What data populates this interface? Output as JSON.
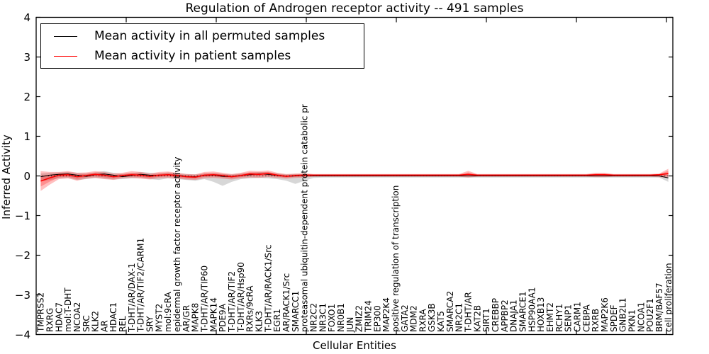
{
  "figure": {
    "title": "Regulation of Androgen receptor activity -- 491 samples"
  },
  "legend": {
    "entries": [
      {
        "label": "Mean activity in all permuted samples",
        "color": "#000000"
      },
      {
        "label": "Mean activity in patient samples",
        "color": "#ff0000"
      }
    ]
  },
  "chart_data": {
    "type": "line",
    "title": "Regulation of Androgen receptor activity -- 491 samples",
    "xlabel": "Cellular Entities",
    "ylabel": "Inferred Activity",
    "ylim": [
      -4,
      4
    ],
    "yticks": [
      -4,
      -3,
      -2,
      -1,
      0,
      1,
      2,
      3,
      4
    ],
    "grid": false,
    "legend_position": "upper left",
    "zero_line_style": "dotted",
    "x_tick_labels_rotation_deg": 90,
    "categories": [
      "TMPRSS2",
      "RXRG",
      "HDAC7",
      "mol:T-DHT",
      "NCOA2",
      "SRC",
      "KLK2",
      "AR",
      "HDAC1",
      "REL",
      "T-DHT/AR/DAX-1",
      "T-DHT/AR/TIF2/CARM1",
      "SRY",
      "MYST2",
      "mol:9cRA",
      "epidermal growth factor receptor activity",
      "AR/GR",
      "MAPK8",
      "T-DHT/AR/TIP60",
      "MAPK14",
      "PDE9A",
      "T-DHT/AR/TIF2",
      "T-DHT/AR/Hsp90",
      "RXRs/9cRA",
      "KLK3",
      "T-DHT/AR/RACK1/Src",
      "EGR1",
      "AR/RACK1/Src",
      "SMARCC1",
      "proteasomal ubiquitin-dependent protein catabolic pr",
      "NR2C2",
      "NR3C1",
      "FOXO1",
      "NR0B1",
      "JUN",
      "ZMIZ2",
      "TRIM24",
      "EP300",
      "MAP2K4",
      "positive regulation of transcription",
      "GATA2",
      "MDM2",
      "RXRA",
      "GSK3B",
      "KAT5",
      "SMARCA2",
      "NR2C1",
      "T-DHT/AR",
      "KAT2B",
      "SIRT1",
      "CREBBP",
      "APPBP2",
      "DNAJA1",
      "SMARCE1",
      "HSP90AA1",
      "HOXB13",
      "EHMT2",
      "RCHY1",
      "SENP1",
      "CARM1",
      "CEBPA",
      "RXRB",
      "MAP2K6",
      "SPDEF",
      "GNB2L1",
      "PKN1",
      "NCOA1",
      "POU2F1",
      "BRM/BAF57",
      "cell proliferation"
    ],
    "series": [
      {
        "name": "Mean activity in all permuted samples",
        "color": "#000000",
        "band_color": "rgba(110,110,110,0.28)",
        "mean": [
          -0.02,
          0.02,
          0.04,
          0.05,
          0.02,
          -0.01,
          0.03,
          0.05,
          0.02,
          -0.02,
          0.01,
          0.04,
          0.02,
          0.01,
          0.03,
          0.02,
          -0.01,
          -0.02,
          0.01,
          0.02,
          -0.01,
          -0.02,
          0.01,
          0.03,
          0.05,
          0.04,
          0.01,
          -0.01,
          0.0,
          0.01,
          0.0,
          0.0,
          0.0,
          0.0,
          0.0,
          0.0,
          0.0,
          0.0,
          0.0,
          0.0,
          0.0,
          0.0,
          0.0,
          0.0,
          0.0,
          0.0,
          0.0,
          0.0,
          0.0,
          0.0,
          0.0,
          0.0,
          0.0,
          0.0,
          0.0,
          0.0,
          0.0,
          0.0,
          0.0,
          0.0,
          0.0,
          0.0,
          0.0,
          0.0,
          0.0,
          0.0,
          0.0,
          0.0,
          0.0,
          -0.05
        ],
        "upper": [
          0.06,
          0.08,
          0.09,
          0.1,
          0.08,
          0.06,
          0.09,
          0.12,
          0.08,
          0.05,
          0.07,
          0.1,
          0.08,
          0.06,
          0.09,
          0.07,
          0.05,
          0.04,
          0.06,
          0.07,
          0.05,
          0.04,
          0.06,
          0.08,
          0.1,
          0.09,
          0.06,
          0.04,
          0.05,
          0.05,
          0.04,
          0.04,
          0.04,
          0.04,
          0.04,
          0.04,
          0.04,
          0.04,
          0.04,
          0.04,
          0.04,
          0.04,
          0.04,
          0.04,
          0.04,
          0.04,
          0.04,
          0.04,
          0.04,
          0.04,
          0.04,
          0.04,
          0.04,
          0.04,
          0.04,
          0.04,
          0.04,
          0.04,
          0.04,
          0.04,
          0.04,
          0.04,
          0.04,
          0.04,
          0.04,
          0.04,
          0.04,
          0.04,
          0.04,
          0.04
        ],
        "lower": [
          -0.14,
          -0.1,
          -0.06,
          -0.05,
          -0.1,
          -0.08,
          -0.05,
          -0.07,
          -0.09,
          -0.08,
          -0.06,
          -0.05,
          -0.08,
          -0.1,
          -0.06,
          -0.08,
          -0.1,
          -0.12,
          -0.08,
          -0.15,
          -0.25,
          -0.15,
          -0.08,
          -0.06,
          -0.05,
          -0.06,
          -0.08,
          -0.12,
          -0.2,
          -0.12,
          -0.05,
          -0.04,
          -0.04,
          -0.04,
          -0.04,
          -0.04,
          -0.04,
          -0.04,
          -0.04,
          -0.04,
          -0.04,
          -0.04,
          -0.04,
          -0.04,
          -0.04,
          -0.04,
          -0.04,
          -0.04,
          -0.04,
          -0.04,
          -0.04,
          -0.04,
          -0.04,
          -0.04,
          -0.04,
          -0.04,
          -0.04,
          -0.04,
          -0.04,
          -0.04,
          -0.04,
          -0.04,
          -0.04,
          -0.04,
          -0.04,
          -0.04,
          -0.04,
          -0.04,
          -0.04,
          -0.15
        ]
      },
      {
        "name": "Mean activity in patient samples",
        "color": "#ff0000",
        "band_color": "rgba(255,0,0,0.25)",
        "mean": [
          -0.13,
          -0.05,
          0.02,
          0.03,
          -0.02,
          0.01,
          0.04,
          0.02,
          -0.02,
          0.01,
          0.03,
          0.02,
          -0.01,
          0.02,
          0.03,
          0.01,
          -0.02,
          -0.03,
          0.02,
          0.03,
          0.01,
          -0.02,
          0.01,
          0.05,
          0.04,
          0.06,
          0.02,
          -0.01,
          0.01,
          0.02,
          0.02,
          0.02,
          0.02,
          0.02,
          0.02,
          0.02,
          0.02,
          0.02,
          0.02,
          0.02,
          0.02,
          0.02,
          0.02,
          0.02,
          0.02,
          0.02,
          0.02,
          0.04,
          0.02,
          0.02,
          0.02,
          0.02,
          0.02,
          0.02,
          0.02,
          0.02,
          0.02,
          0.02,
          0.02,
          0.02,
          0.02,
          0.03,
          0.03,
          0.02,
          0.02,
          0.02,
          0.02,
          0.02,
          0.03,
          0.06
        ],
        "upper": [
          0.12,
          0.1,
          0.1,
          0.12,
          0.08,
          0.09,
          0.12,
          0.1,
          0.06,
          0.08,
          0.12,
          0.1,
          0.06,
          0.1,
          0.11,
          0.08,
          0.05,
          0.04,
          0.1,
          0.11,
          0.08,
          0.05,
          0.08,
          0.13,
          0.12,
          0.14,
          0.08,
          0.05,
          0.06,
          0.07,
          0.05,
          0.05,
          0.05,
          0.05,
          0.05,
          0.05,
          0.05,
          0.05,
          0.05,
          0.05,
          0.05,
          0.05,
          0.05,
          0.05,
          0.05,
          0.05,
          0.05,
          0.13,
          0.05,
          0.05,
          0.05,
          0.05,
          0.05,
          0.05,
          0.05,
          0.05,
          0.05,
          0.05,
          0.05,
          0.05,
          0.05,
          0.08,
          0.08,
          0.05,
          0.05,
          0.05,
          0.05,
          0.05,
          0.06,
          0.18
        ],
        "lower": [
          -0.38,
          -0.22,
          -0.08,
          -0.06,
          -0.12,
          -0.07,
          -0.05,
          -0.08,
          -0.1,
          -0.06,
          -0.05,
          -0.07,
          -0.09,
          -0.06,
          -0.05,
          -0.07,
          -0.09,
          -0.1,
          -0.06,
          -0.05,
          -0.07,
          -0.09,
          -0.06,
          -0.04,
          -0.05,
          -0.03,
          -0.05,
          -0.07,
          -0.05,
          -0.04,
          -0.02,
          -0.02,
          -0.02,
          -0.02,
          -0.02,
          -0.02,
          -0.02,
          -0.02,
          -0.02,
          -0.02,
          -0.02,
          -0.02,
          -0.02,
          -0.02,
          -0.02,
          -0.02,
          -0.02,
          -0.04,
          -0.02,
          -0.02,
          -0.02,
          -0.02,
          -0.02,
          -0.02,
          -0.02,
          -0.02,
          -0.02,
          -0.02,
          -0.02,
          -0.02,
          -0.02,
          -0.03,
          -0.03,
          -0.02,
          -0.02,
          -0.02,
          -0.02,
          -0.02,
          -0.03,
          -0.05
        ]
      }
    ]
  }
}
